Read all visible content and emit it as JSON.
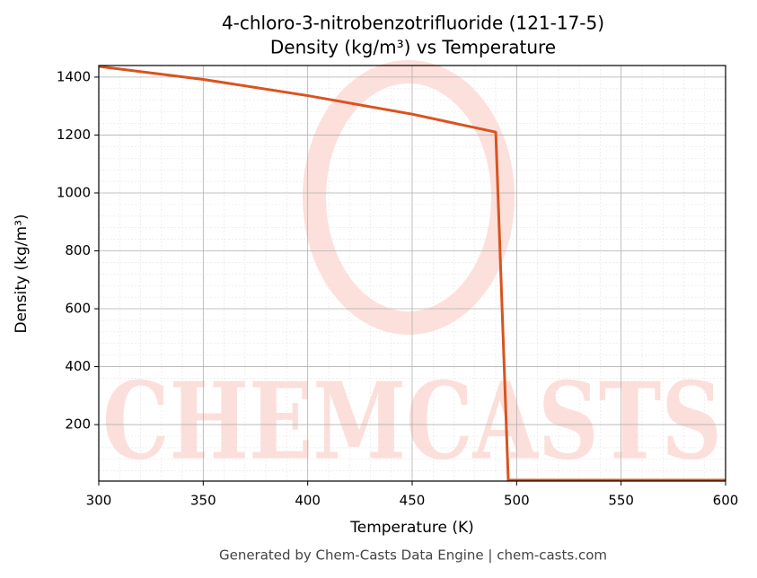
{
  "chart_data": {
    "type": "line",
    "title": "4-chloro-3-nitrobenzotrifluoride (121-17-5)",
    "subtitle": "Density (kg/m³) vs Temperature",
    "x_label": "Temperature (K)",
    "y_label": "Density (kg/m³)",
    "footer": "Generated by Chem-Casts Data Engine | chem-casts.com",
    "watermark": "CHEMCASTS",
    "x": [
      300,
      350,
      400,
      450,
      490,
      496,
      600
    ],
    "series": [
      {
        "name": "Density",
        "color": "#d9531e",
        "values": [
          1437,
          1392,
          1336,
          1272,
          1210,
          8,
          8
        ]
      }
    ],
    "xlim": [
      300,
      600
    ],
    "xticks": [
      300,
      350,
      400,
      450,
      500,
      550,
      600
    ],
    "ylim": [
      5,
      1440
    ],
    "yticks": [
      200,
      400,
      600,
      800,
      1000,
      1200,
      1400
    ],
    "grid": true
  }
}
